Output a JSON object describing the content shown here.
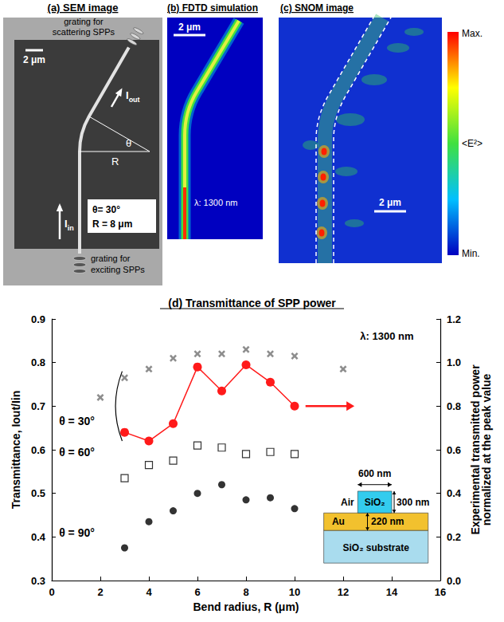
{
  "panels": [
    {
      "title": "(a) SEM image",
      "grating_top": "grating for scattering SPPs",
      "scale": "2 μm",
      "out": "Iout",
      "angle": "θ",
      "radius": "R",
      "in": "Iin",
      "info": [
        "θ= 30°",
        "R = 8 μm"
      ],
      "grating_bottom": "grating for exciting SPPs"
    },
    {
      "title": "(b) FDTD simulation",
      "scale": "2 μm",
      "wavelength": "λ: 1300 nm"
    },
    {
      "title": "(c) SNOM image",
      "scale": "2 μm",
      "colorbar": [
        "Max.",
        "<E²>",
        "Min."
      ]
    }
  ],
  "chart_data": {
    "type": "scatter",
    "title": "(d) Transmittance of SPP power",
    "xlabel": "Bend radius, R (μm)",
    "ylabel": "Transmittance, Iout/Iin",
    "y2label": "Experimental transmitted power normalized at the peak value",
    "xlim": [
      0,
      16
    ],
    "xticks": [
      0,
      2,
      4,
      6,
      8,
      10,
      12,
      14,
      16
    ],
    "ylim": [
      0.3,
      0.9
    ],
    "yticks": [
      0.3,
      0.4,
      0.5,
      0.6,
      0.7,
      0.8,
      0.9
    ],
    "y2lim": [
      0,
      1.2
    ],
    "y2ticks": [
      {
        "value": 0,
        "label": "0.0"
      },
      0.2,
      0.4,
      0.6,
      0.8,
      {
        "value": 1,
        "label": "1.0"
      },
      1.2
    ],
    "grid": false,
    "series": [
      {
        "type": "scatter",
        "marker": "x",
        "color": "#707070",
        "x": [
          2,
          3,
          4,
          5,
          6,
          7,
          8,
          9,
          10,
          12
        ],
        "values": [
          0.72,
          0.765,
          0.785,
          0.81,
          0.82,
          0.82,
          0.83,
          0.82,
          0.815,
          0.785
        ]
      },
      {
        "type": "scatter",
        "marker": "square_open",
        "color": "#000000",
        "x": [
          3,
          4,
          5,
          6,
          7,
          8,
          9,
          10
        ],
        "values": [
          0.535,
          0.565,
          0.575,
          0.61,
          0.605,
          0.59,
          0.595,
          0.59
        ]
      },
      {
        "type": "scatter",
        "marker": "circle",
        "color": "#000000",
        "x": [
          3,
          4,
          5,
          6,
          7,
          8,
          9,
          10
        ],
        "values": [
          0.375,
          0.435,
          0.46,
          0.5,
          0.52,
          0.485,
          0.49,
          0.465
        ]
      },
      {
        "type": "line",
        "marker": "circle",
        "line_style": "solid",
        "color": "#ff1a1a",
        "axis": "y2",
        "x": [
          3,
          4,
          5,
          6,
          7,
          8,
          9,
          10
        ],
        "values": [
          0.68,
          0.64,
          0.72,
          0.98,
          0.87,
          0.99,
          0.91,
          0.8
        ]
      }
    ],
    "annotations": [
      "θ = 30°",
      "θ = 60°",
      "θ = 90°",
      "λ: 1300 nm"
    ],
    "inset": {
      "width": "600 nm",
      "height": "300 nm",
      "thickness": "220 nm",
      "air": "Air",
      "ridge": "SiO₂",
      "metal": "Au",
      "substrate": "SiO₂ substrate"
    }
  }
}
